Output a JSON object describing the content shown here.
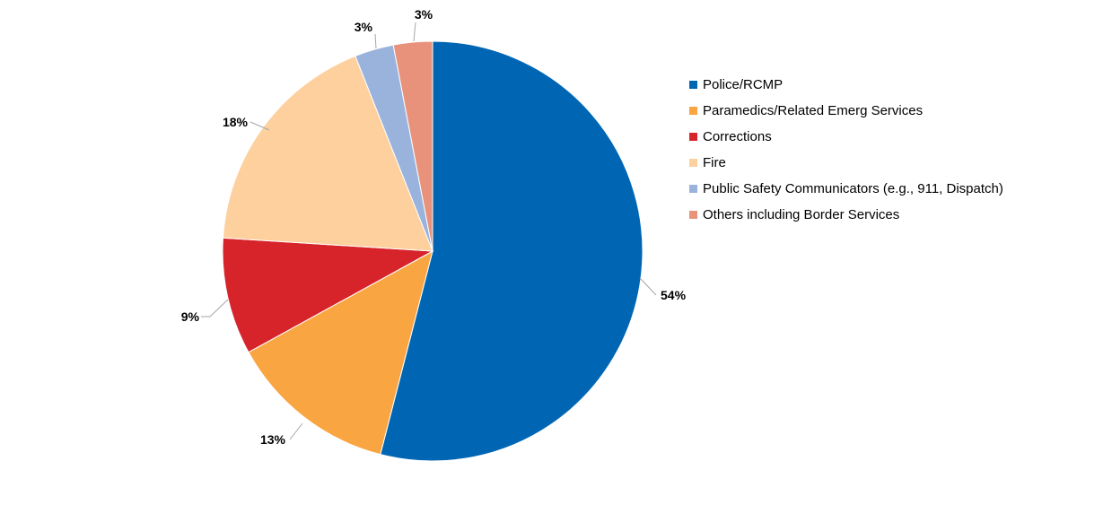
{
  "chart_data": {
    "type": "pie",
    "title": "",
    "slices": [
      {
        "label": "Police/RCMP",
        "value": 54,
        "display": "54%",
        "color": "#0066b3"
      },
      {
        "label": "Paramedics/Related Emerg Services",
        "value": 13,
        "display": "13%",
        "color": "#f9a541"
      },
      {
        "label": "Corrections",
        "value": 9,
        "display": "9%",
        "color": "#d7242a"
      },
      {
        "label": "Fire",
        "value": 18,
        "display": "18%",
        "color": "#fdd09e"
      },
      {
        "label": "Public Safety Communicators (e.g., 911, Dispatch)",
        "value": 3,
        "display": "3%",
        "color": "#9ab3dc"
      },
      {
        "label": "Others including Border Services",
        "value": 3,
        "display": "3%",
        "color": "#e8927b"
      }
    ],
    "legend_position": "right",
    "start_angle": "12 o'clock",
    "direction": "clockwise"
  }
}
